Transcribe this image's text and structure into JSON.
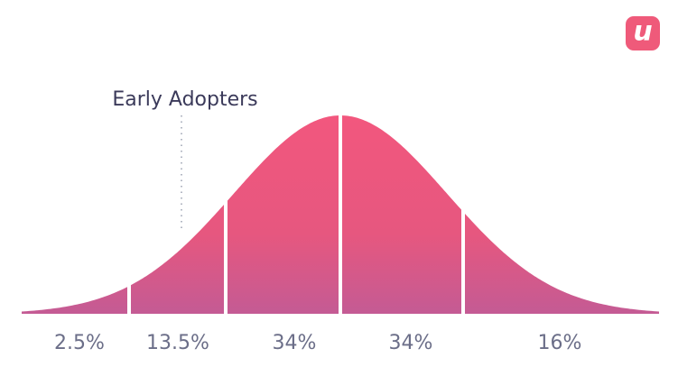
{
  "logo": "u",
  "annotation": "Early Adopters",
  "segments": [
    "2.5%",
    "13.5%",
    "34%",
    "34%",
    "16%"
  ]
}
